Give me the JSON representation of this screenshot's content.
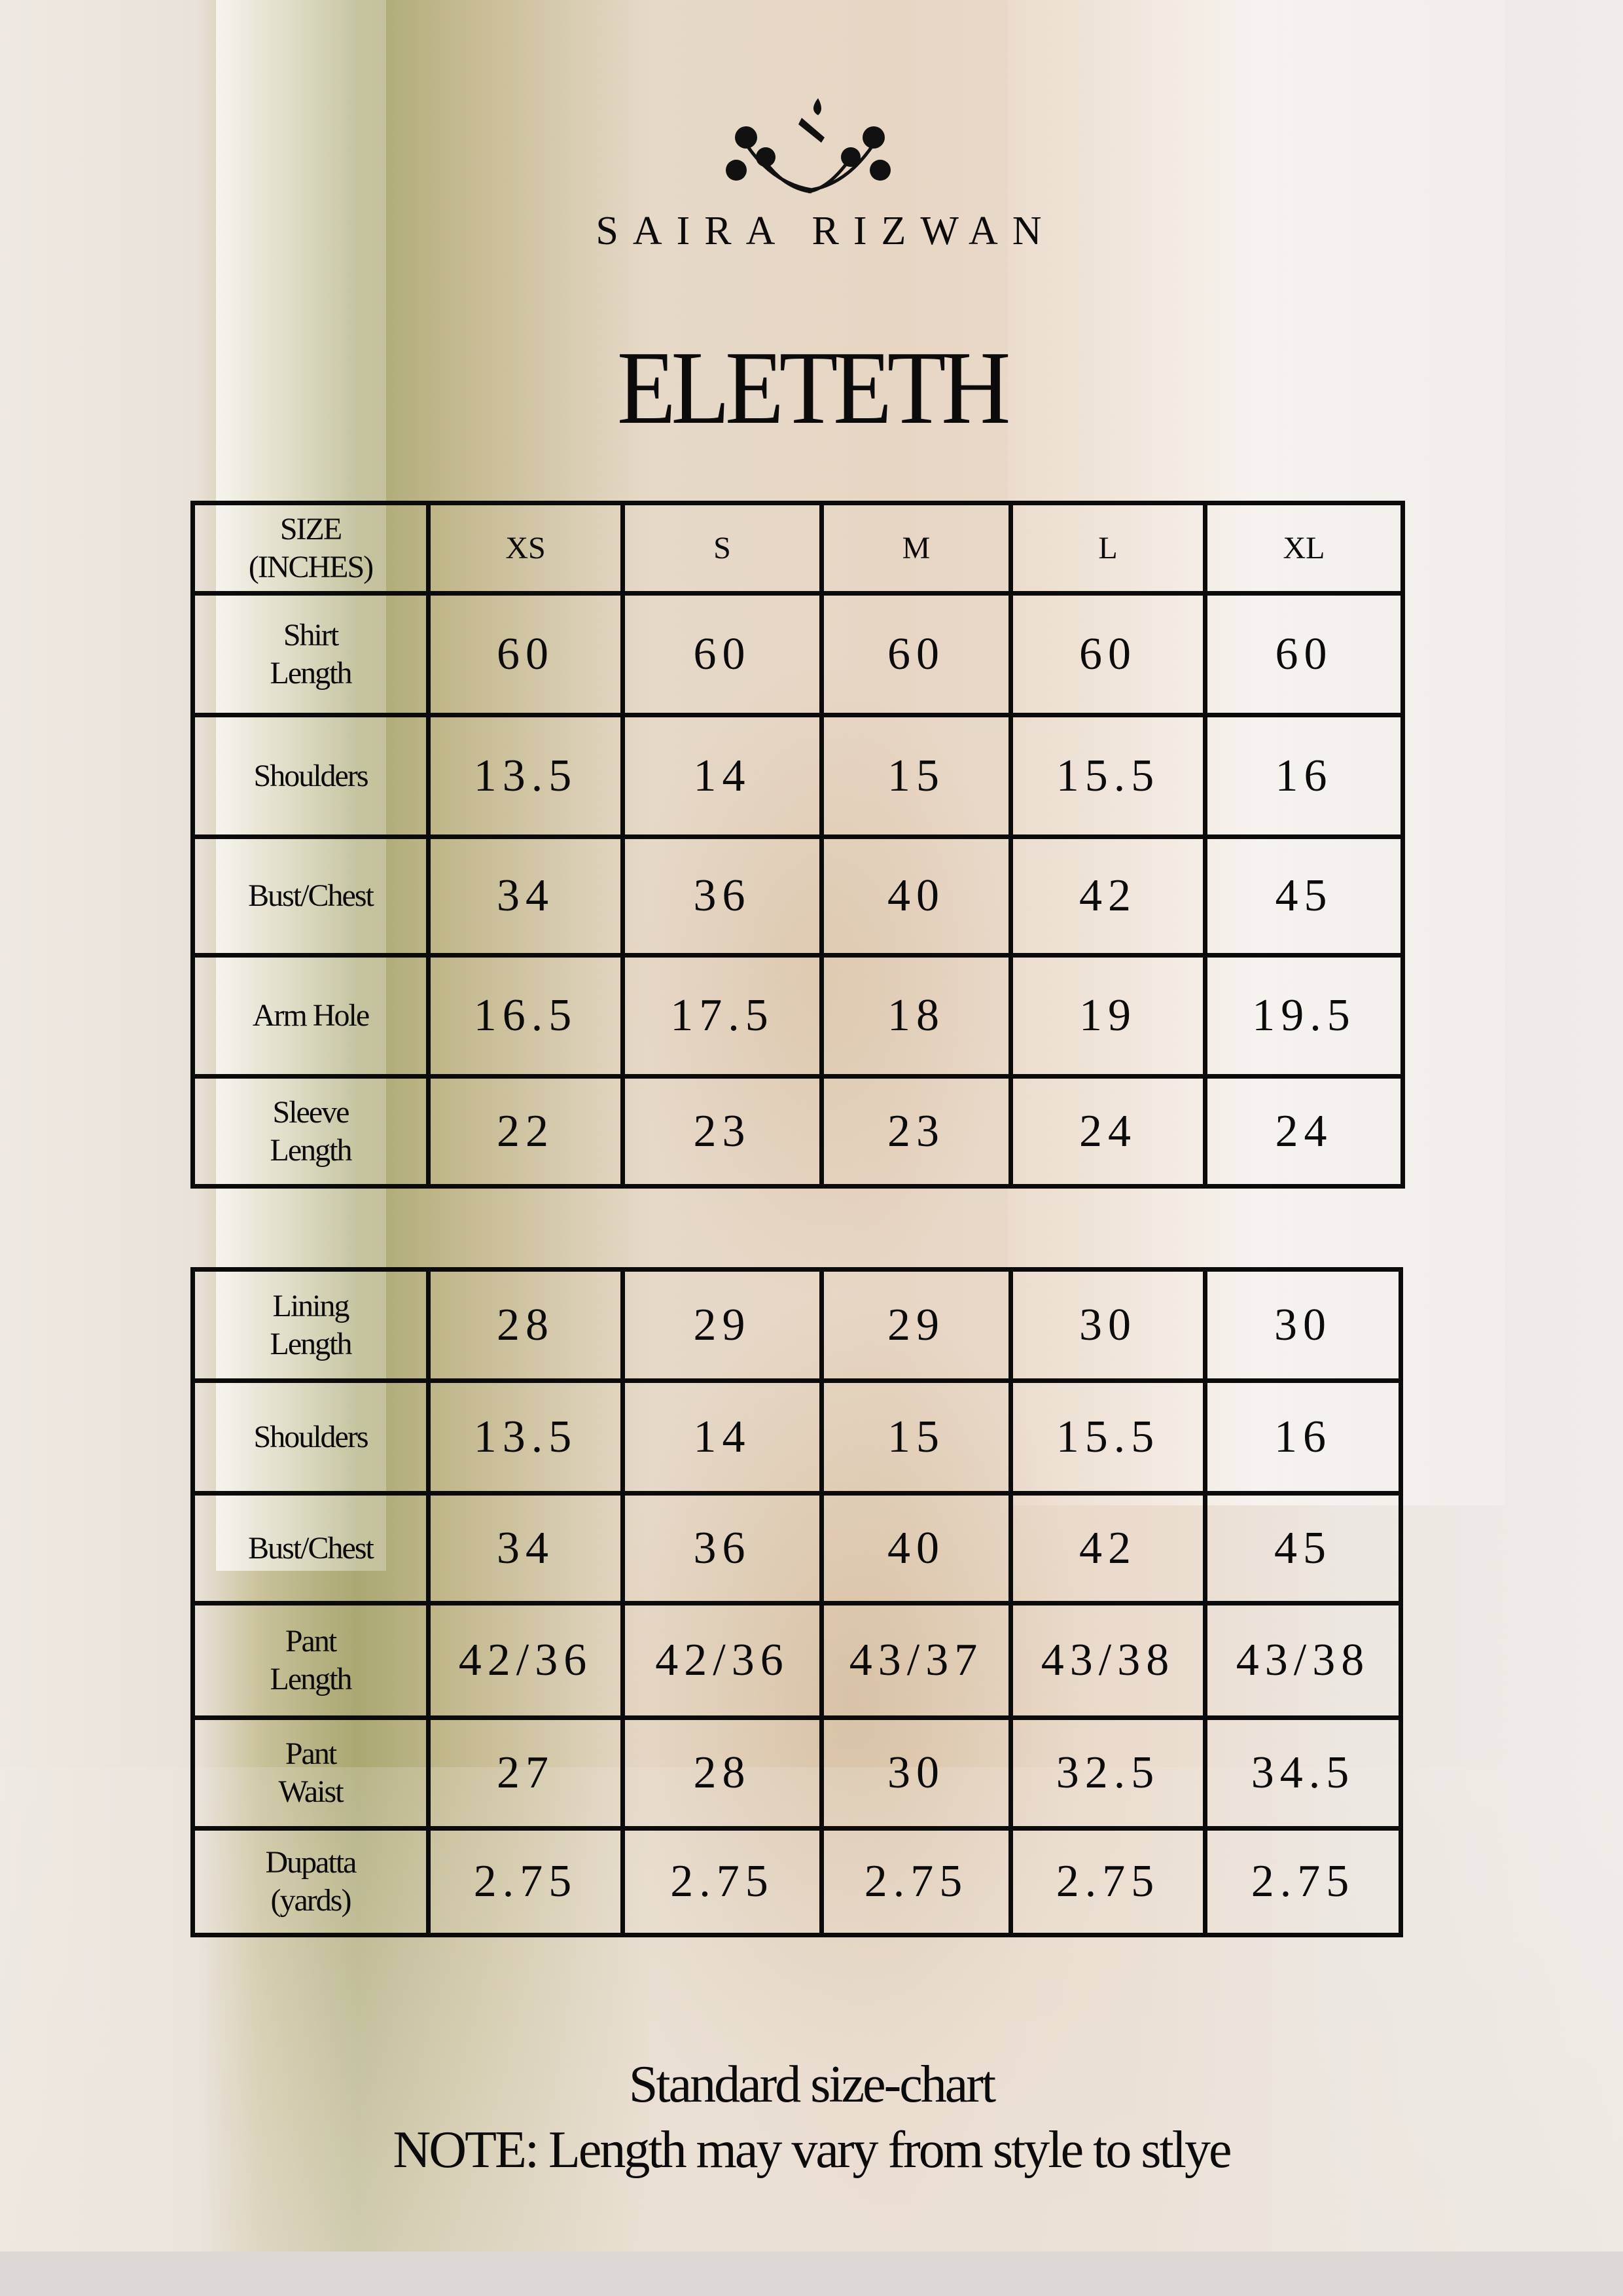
{
  "brand": {
    "name": "SAIRA RIZWAN",
    "logo_icon": "floral-monogram-logo"
  },
  "title": "ELETETH",
  "table1": {
    "header": [
      "SIZE\n(INCHES)",
      "XS",
      "S",
      "M",
      "L",
      "XL"
    ],
    "rows": [
      {
        "label": "Shirt\nLength",
        "values": [
          "60",
          "60",
          "60",
          "60",
          "60"
        ]
      },
      {
        "label": "Shoulders",
        "values": [
          "13.5",
          "14",
          "15",
          "15.5",
          "16"
        ]
      },
      {
        "label": "Bust/Chest",
        "values": [
          "34",
          "36",
          "40",
          "42",
          "45"
        ]
      },
      {
        "label": "Arm Hole",
        "values": [
          "16.5",
          "17.5",
          "18",
          "19",
          "19.5"
        ]
      },
      {
        "label": "Sleeve\nLength",
        "values": [
          "22",
          "23",
          "23",
          "24",
          "24"
        ]
      }
    ]
  },
  "table2": {
    "rows": [
      {
        "label": "Lining\nLength",
        "values": [
          "28",
          "29",
          "29",
          "30",
          "30"
        ]
      },
      {
        "label": "Shoulders",
        "values": [
          "13.5",
          "14",
          "15",
          "15.5",
          "16"
        ]
      },
      {
        "label": "Bust/Chest",
        "values": [
          "34",
          "36",
          "40",
          "42",
          "45"
        ]
      },
      {
        "label": "Pant\nLength",
        "values": [
          "42/36",
          "42/36",
          "43/37",
          "43/38",
          "43/38"
        ]
      },
      {
        "label": "Pant\nWaist",
        "values": [
          "27",
          "28",
          "30",
          "32.5",
          "34.5"
        ]
      },
      {
        "label": "Dupatta\n(yards)",
        "values": [
          "2.75",
          "2.75",
          "2.75",
          "2.75",
          "2.75"
        ]
      }
    ]
  },
  "footer": {
    "line1": "Standard size-chart",
    "line2": "NOTE: Length may vary from style to stlye"
  }
}
